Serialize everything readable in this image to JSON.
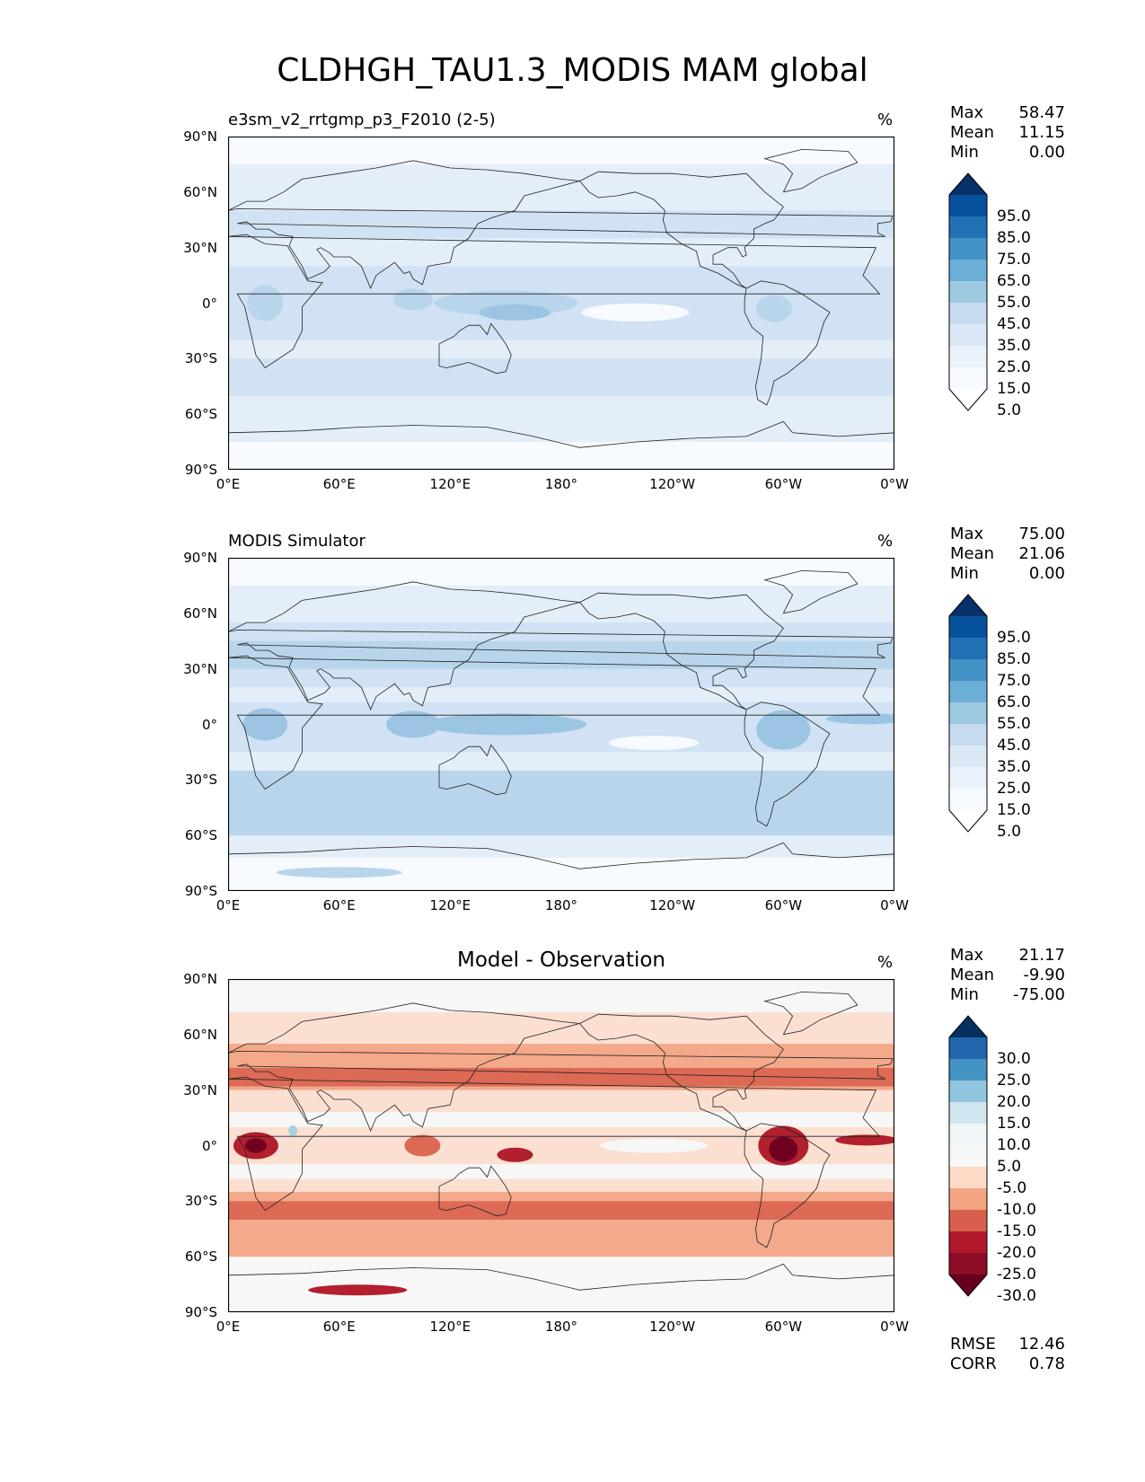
{
  "title": "CLDHGH_TAU1.3_MODIS MAM global",
  "axes": {
    "lat_labels": [
      "90°N",
      "60°N",
      "30°N",
      "0°",
      "30°S",
      "60°S",
      "90°S"
    ],
    "lon_labels": [
      "0°E",
      "60°E",
      "120°E",
      "180°",
      "120°W",
      "60°W",
      "0°W"
    ]
  },
  "panels": [
    {
      "title": "e3sm_v2_rrtgmp_p3_F2010 (2-5)",
      "title_style": "left",
      "units": "%",
      "stats": {
        "max_label": "Max",
        "max": "58.47",
        "mean_label": "Mean",
        "mean": "11.15",
        "min_label": "Min",
        "min": "0.00"
      },
      "colorbar": {
        "levels": [
          "95.0",
          "85.0",
          "75.0",
          "65.0",
          "55.0",
          "45.0",
          "35.0",
          "25.0",
          "15.0",
          "5.0"
        ],
        "colors": [
          "#08306b",
          "#08519c",
          "#2171b5",
          "#4292c6",
          "#6baed6",
          "#9ecae1",
          "#c6dbef",
          "#dbe9f6",
          "#eaf3fb",
          "#f7fbff",
          "#ffffff"
        ]
      }
    },
    {
      "title": "MODIS Simulator",
      "title_style": "left",
      "units": "%",
      "stats": {
        "max_label": "Max",
        "max": "75.00",
        "mean_label": "Mean",
        "mean": "21.06",
        "min_label": "Min",
        "min": "0.00"
      },
      "colorbar": {
        "levels": [
          "95.0",
          "85.0",
          "75.0",
          "65.0",
          "55.0",
          "45.0",
          "35.0",
          "25.0",
          "15.0",
          "5.0"
        ],
        "colors": [
          "#08306b",
          "#08519c",
          "#2171b5",
          "#4292c6",
          "#6baed6",
          "#9ecae1",
          "#c6dbef",
          "#dbe9f6",
          "#eaf3fb",
          "#f7fbff",
          "#ffffff"
        ]
      }
    },
    {
      "title": "Model - Observation",
      "title_style": "center",
      "units": "%",
      "stats": {
        "max_label": "Max",
        "max": "21.17",
        "mean_label": "Mean",
        "mean": "-9.90",
        "min_label": "Min",
        "min": "-75.00"
      },
      "colorbar": {
        "levels": [
          "30.0",
          "25.0",
          "20.0",
          "15.0",
          "10.0",
          "5.0",
          "-5.0",
          "-10.0",
          "-15.0",
          "-20.0",
          "-25.0",
          "-30.0"
        ],
        "colors": [
          "#053061",
          "#2166ac",
          "#4393c3",
          "#92c5de",
          "#d1e5f0",
          "#f0f5f8",
          "#f7f7f7",
          "#fddbc7",
          "#f4a582",
          "#d6604d",
          "#b2182b",
          "#8c0d25",
          "#67001f"
        ]
      },
      "metrics": {
        "rmse_label": "RMSE",
        "rmse": "12.46",
        "corr_label": "CORR",
        "corr": "0.78"
      }
    }
  ],
  "colors": {
    "blue_low": "#f7fbff",
    "blue_1": "#e3eef9",
    "blue_2": "#d0e2f3",
    "blue_3": "#b9d5ec",
    "blue_4": "#9cc5e3",
    "blue_5": "#7bb0da",
    "diff_zero": "#f7f7f7",
    "diff_1": "#fbe0d2",
    "diff_2": "#f4a98a",
    "diff_3": "#dc6a55",
    "diff_4": "#b21f2e",
    "diff_5": "#700020",
    "diff_pos": "#a7cfe4"
  }
}
